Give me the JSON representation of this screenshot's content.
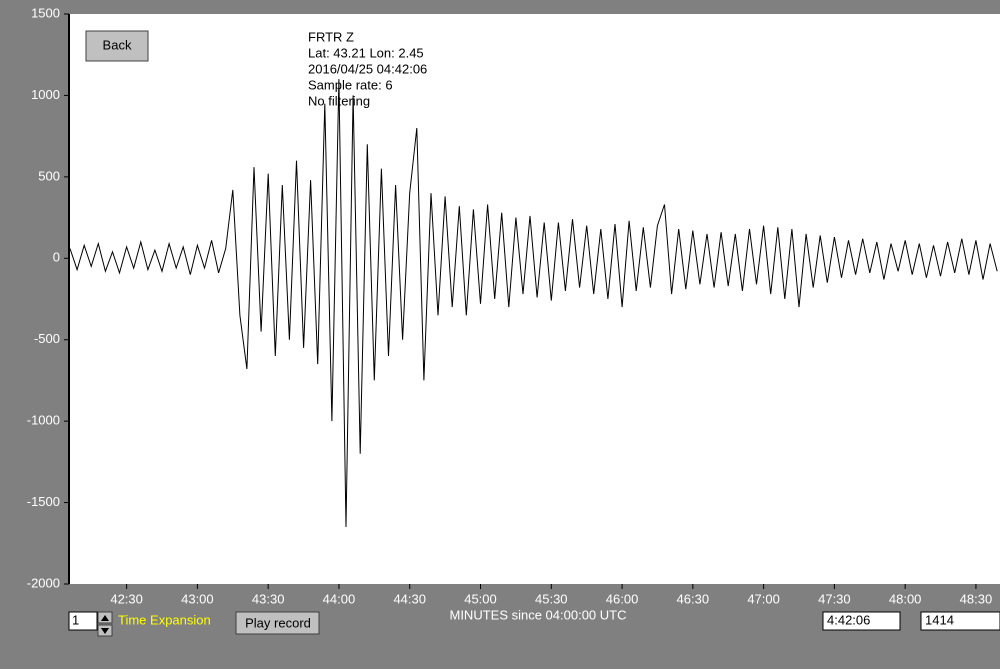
{
  "buttons": {
    "back": "Back",
    "play": "Play record"
  },
  "info": [
    "FRTR  Z",
    "Lat: 43.21 Lon: 2.45",
    "2016/04/25 04:42:06",
    "Sample rate: 6",
    "No filtering"
  ],
  "controls": {
    "expansion_value": "1",
    "expansion_label": "Time Expansion",
    "start_time": "4:42:06",
    "count": "1414"
  },
  "chart_data": {
    "type": "line",
    "x_label": "MINUTES since 04:00:00 UTC",
    "xlim": [
      42.1,
      48.67
    ],
    "ylim": [
      -2000,
      1500
    ],
    "xticks": [
      {
        "value": 42.5,
        "label": "42:30"
      },
      {
        "value": 43,
        "label": "43:00"
      },
      {
        "value": 43.5,
        "label": "43:30"
      },
      {
        "value": 44,
        "label": "44:00"
      },
      {
        "value": 44.5,
        "label": "44:30"
      },
      {
        "value": 45,
        "label": "45:00"
      },
      {
        "value": 45.5,
        "label": "45:30"
      },
      {
        "value": 46,
        "label": "46:00"
      },
      {
        "value": 46.5,
        "label": "46:30"
      },
      {
        "value": 47,
        "label": "47:00"
      },
      {
        "value": 47.5,
        "label": "47:30"
      },
      {
        "value": 48,
        "label": "48:00"
      },
      {
        "value": 48.5,
        "label": "48:30"
      }
    ],
    "yticks": [
      1500,
      1000,
      500,
      0,
      -500,
      -1000,
      -1500,
      -2000
    ],
    "series": [
      {
        "color": "#000000",
        "x": [
          42.1,
          42.15,
          42.2,
          42.25,
          42.3,
          42.35,
          42.4,
          42.45,
          42.5,
          42.55,
          42.6,
          42.65,
          42.7,
          42.75,
          42.8,
          42.85,
          42.9,
          42.95,
          43,
          43.05,
          43.1,
          43.15,
          43.2,
          43.25,
          43.3,
          43.35,
          43.4,
          43.45,
          43.5,
          43.55,
          43.6,
          43.65,
          43.7,
          43.75,
          43.8,
          43.85,
          43.9,
          43.95,
          44,
          44.05,
          44.1,
          44.15,
          44.2,
          44.25,
          44.3,
          44.35,
          44.4,
          44.45,
          44.5,
          44.55,
          44.6,
          44.65,
          44.7,
          44.75,
          44.8,
          44.85,
          44.9,
          44.95,
          45,
          45.05,
          45.1,
          45.15,
          45.2,
          45.25,
          45.3,
          45.35,
          45.4,
          45.45,
          45.5,
          45.55,
          45.6,
          45.65,
          45.7,
          45.75,
          45.8,
          45.85,
          45.9,
          45.95,
          46,
          46.05,
          46.1,
          46.15,
          46.2,
          46.25,
          46.3,
          46.35,
          46.4,
          46.45,
          46.5,
          46.55,
          46.6,
          46.65,
          46.7,
          46.75,
          46.8,
          46.85,
          46.9,
          46.95,
          47,
          47.05,
          47.1,
          47.15,
          47.2,
          47.25,
          47.3,
          47.35,
          47.4,
          47.45,
          47.5,
          47.55,
          47.6,
          47.65,
          47.7,
          47.75,
          47.8,
          47.85,
          47.9,
          47.95,
          48,
          48.05,
          48.1,
          48.15,
          48.2,
          48.25,
          48.3,
          48.35,
          48.4,
          48.45,
          48.5,
          48.55,
          48.6,
          48.65
        ],
        "values": [
          60,
          -70,
          80,
          -50,
          90,
          -80,
          40,
          -90,
          70,
          -60,
          100,
          -70,
          50,
          -80,
          90,
          -60,
          70,
          -100,
          80,
          -60,
          110,
          -90,
          60,
          420,
          -350,
          -680,
          560,
          -450,
          520,
          -600,
          450,
          -500,
          600,
          -550,
          480,
          -650,
          950,
          -1000,
          1100,
          -1650,
          1000,
          -1200,
          700,
          -750,
          550,
          -600,
          450,
          -500,
          400,
          800,
          -750,
          400,
          -350,
          380,
          -300,
          320,
          -350,
          300,
          -280,
          330,
          -250,
          280,
          -300,
          250,
          -220,
          260,
          -240,
          220,
          -260,
          220,
          -200,
          240,
          -180,
          200,
          -220,
          180,
          -250,
          210,
          -300,
          230,
          -200,
          190,
          -180,
          200,
          330,
          -220,
          180,
          -190,
          170,
          -160,
          150,
          -180,
          160,
          -170,
          150,
          -200,
          180,
          -160,
          200,
          -220,
          190,
          -250,
          180,
          -300,
          150,
          -180,
          140,
          -150,
          130,
          -120,
          110,
          -100,
          120,
          -90,
          100,
          -130,
          90,
          -80,
          110,
          -100,
          90,
          -120,
          80,
          -110,
          100,
          -90,
          120,
          -100,
          110,
          -130,
          90,
          -80
        ]
      }
    ]
  }
}
